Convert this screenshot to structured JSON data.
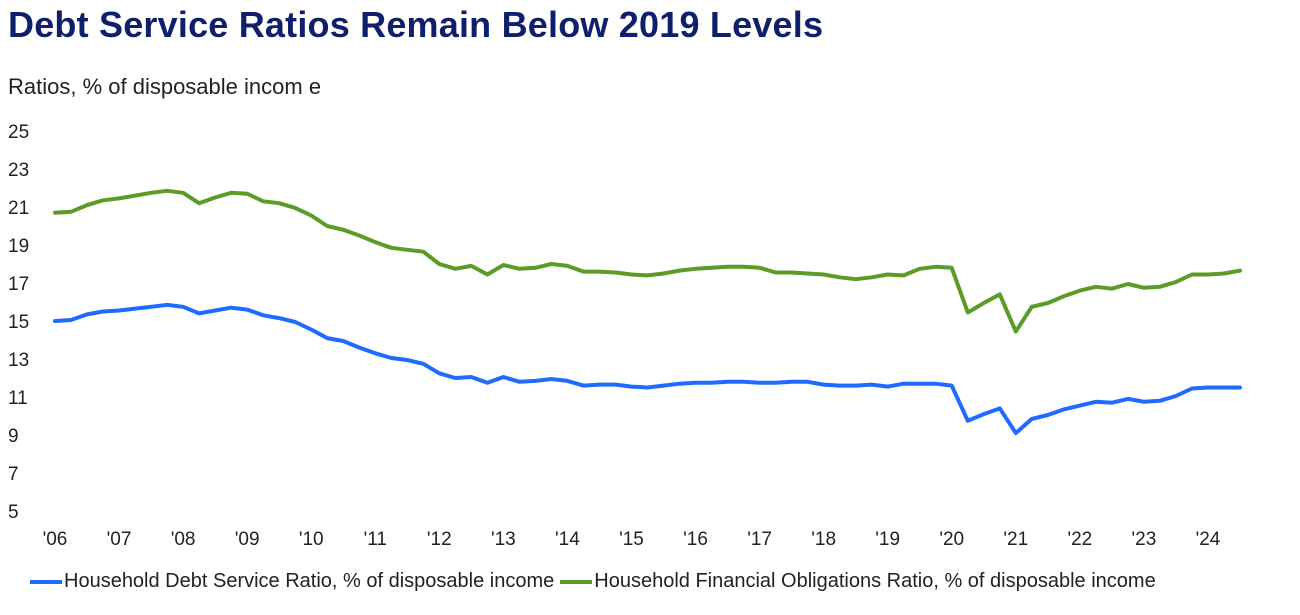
{
  "title": "Debt Service Ratios Remain Below 2019 Levels",
  "subtitle": "Ratios, % of disposable incom e",
  "chart_data": {
    "type": "line",
    "title": "Debt Service Ratios Remain Below 2019 Levels",
    "ylabel": "Ratios, % of disposable incom e",
    "xlabel": "",
    "ylim": [
      5,
      25
    ],
    "yticks": [
      "25",
      "23",
      "21",
      "19",
      "17",
      "15",
      "13",
      "11",
      "9",
      "7",
      "5"
    ],
    "xlim": [
      2006,
      2024.75
    ],
    "xticks": [
      "'06",
      "'07",
      "'08",
      "'09",
      "'10",
      "'11",
      "'12",
      "'13",
      "'14",
      "'15",
      "'16",
      "'17",
      "'18",
      "'19",
      "'20",
      "'21",
      "'22",
      "'23",
      "'24"
    ],
    "grid": false,
    "legend_position": "bottom",
    "x": [
      2006.0,
      2006.25,
      2006.5,
      2006.75,
      2007.0,
      2007.25,
      2007.5,
      2007.75,
      2008.0,
      2008.25,
      2008.5,
      2008.75,
      2009.0,
      2009.25,
      2009.5,
      2009.75,
      2010.0,
      2010.25,
      2010.5,
      2010.75,
      2011.0,
      2011.25,
      2011.5,
      2011.75,
      2012.0,
      2012.25,
      2012.5,
      2012.75,
      2013.0,
      2013.25,
      2013.5,
      2013.75,
      2014.0,
      2014.25,
      2014.5,
      2014.75,
      2015.0,
      2015.25,
      2015.5,
      2015.75,
      2016.0,
      2016.25,
      2016.5,
      2016.75,
      2017.0,
      2017.25,
      2017.5,
      2017.75,
      2018.0,
      2018.25,
      2018.5,
      2018.75,
      2019.0,
      2019.25,
      2019.5,
      2019.75,
      2020.0,
      2020.25,
      2020.5,
      2020.75,
      2021.0,
      2021.25,
      2021.5,
      2021.75,
      2022.0,
      2022.25,
      2022.5,
      2022.75,
      2023.0,
      2023.25,
      2023.5,
      2023.75,
      2024.0,
      2024.25,
      2024.5
    ],
    "series": [
      {
        "name": "Household Debt Service Ratio, % of disposable income",
        "color": "#1f6bff",
        "values": [
          15.0,
          15.05,
          15.35,
          15.5,
          15.55,
          15.65,
          15.75,
          15.85,
          15.75,
          15.4,
          15.55,
          15.7,
          15.6,
          15.3,
          15.15,
          14.95,
          14.55,
          14.1,
          13.95,
          13.6,
          13.3,
          13.05,
          12.95,
          12.75,
          12.25,
          12.0,
          12.05,
          11.75,
          12.05,
          11.8,
          11.85,
          11.95,
          11.85,
          11.6,
          11.65,
          11.65,
          11.55,
          11.5,
          11.6,
          11.7,
          11.75,
          11.75,
          11.8,
          11.8,
          11.75,
          11.75,
          11.8,
          11.8,
          11.65,
          11.6,
          11.6,
          11.65,
          11.55,
          11.7,
          11.7,
          11.7,
          11.6,
          9.75,
          10.1,
          10.4,
          9.1,
          9.85,
          10.05,
          10.35,
          10.55,
          10.75,
          10.7,
          10.9,
          10.75,
          10.8,
          11.05,
          11.45,
          11.5,
          11.5,
          11.5
        ]
      },
      {
        "name": "Household Financial Obligations Ratio, % of disposable income",
        "color": "#5a9c27",
        "values": [
          20.7,
          20.75,
          21.1,
          21.35,
          21.45,
          21.6,
          21.75,
          21.85,
          21.75,
          21.2,
          21.5,
          21.75,
          21.7,
          21.3,
          21.2,
          20.95,
          20.55,
          20.0,
          19.8,
          19.5,
          19.15,
          18.85,
          18.75,
          18.65,
          18.0,
          17.75,
          17.9,
          17.45,
          17.95,
          17.75,
          17.8,
          18.0,
          17.9,
          17.6,
          17.6,
          17.55,
          17.45,
          17.4,
          17.5,
          17.65,
          17.75,
          17.8,
          17.85,
          17.85,
          17.8,
          17.55,
          17.55,
          17.5,
          17.45,
          17.3,
          17.2,
          17.3,
          17.45,
          17.4,
          17.75,
          17.85,
          17.8,
          15.45,
          15.95,
          16.4,
          14.45,
          15.75,
          15.95,
          16.3,
          16.6,
          16.8,
          16.7,
          16.95,
          16.75,
          16.8,
          17.05,
          17.45,
          17.45,
          17.5,
          17.65
        ]
      }
    ]
  }
}
